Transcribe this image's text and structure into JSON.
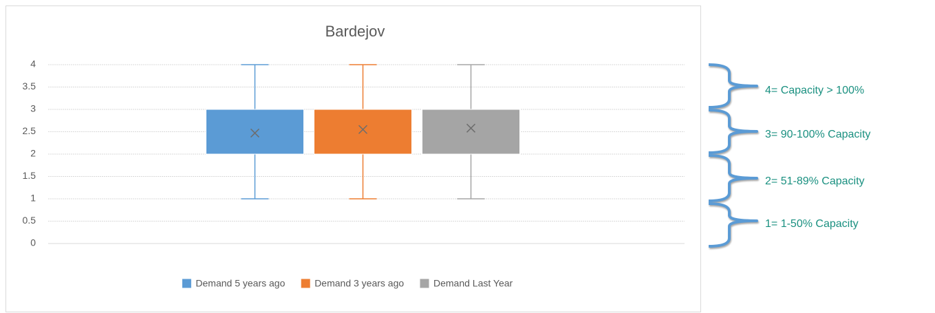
{
  "chart_data": {
    "type": "box",
    "title": "Bardejov",
    "ylim": [
      0,
      4
    ],
    "yticks": [
      0,
      0.5,
      1,
      1.5,
      2,
      2.5,
      3,
      3.5,
      4
    ],
    "grid": true,
    "legend": "bottom",
    "series": [
      {
        "name": "Demand 5 years ago",
        "color": "#5b9bd5",
        "min": 1,
        "q1": 2,
        "q3": 3,
        "max": 4,
        "mean": 2.47
      },
      {
        "name": "Demand 3 years ago",
        "color": "#ed7d31",
        "min": 1,
        "q1": 2,
        "q3": 3,
        "max": 4,
        "mean": 2.55
      },
      {
        "name": "Demand Last Year",
        "color": "#a5a5a5",
        "min": 1,
        "q1": 2,
        "q3": 3,
        "max": 4,
        "mean": 2.58
      }
    ],
    "annotations": [
      "4= Capacity > 100%",
      "3= 90-100% Capacity",
      "2= 51-89% Capacity",
      "1= 1-50% Capacity"
    ]
  }
}
